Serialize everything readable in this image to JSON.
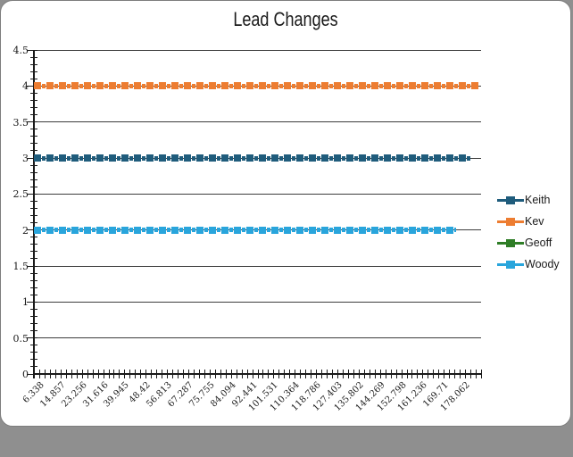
{
  "window": {
    "background_color": "#8f8f8f",
    "card_background_color": "#ffffff",
    "card_border_color": "#7d7d7d"
  },
  "chart_data": {
    "type": "line",
    "title": "Lead Changes",
    "x": {
      "tick_labels": [
        "6.338",
        "14.857",
        "23.256",
        "31.616",
        "39.945",
        "48.42",
        "56.813",
        "67.287",
        "75.755",
        "84.094",
        "92.441",
        "101.531",
        "110.364",
        "118.786",
        "127.403",
        "135.802",
        "144.269",
        "152.798",
        "161.236",
        "169.71",
        "178.062"
      ],
      "total_minor_ticks": 85,
      "label_every_n_minor_ticks": 4,
      "first_label_minor_tick_index": 1,
      "labels_rotation_deg": 45
    },
    "y": {
      "min": 0,
      "max": 4.5,
      "major_step": 0.5,
      "minor_step": 0.1,
      "tick_labels": [
        "0",
        "0.5",
        "1",
        "1.5",
        "2",
        "2.5",
        "3",
        "3.5",
        "4",
        "4.5"
      ]
    },
    "grid": {
      "horizontal_major": true,
      "color": "#3d3d3d"
    },
    "axis_color": "#1a1a1a",
    "legend": {
      "position": "right",
      "entries": [
        "Keith",
        "Kev",
        "Geoff",
        "Woody"
      ]
    },
    "series": [
      {
        "name": "Keith",
        "color": "#1F5C7C",
        "values_constant": 3,
        "end_fraction": 0.976,
        "visible_in_plot": true,
        "line_style": "thick-dashed-with-square-markers"
      },
      {
        "name": "Kev",
        "color": "#ED7D31",
        "values_constant": 4,
        "end_fraction": 0.996,
        "visible_in_plot": true,
        "line_style": "thick-dashed-with-square-markers"
      },
      {
        "name": "Geoff",
        "color": "#2E7D26",
        "values_constant": null,
        "end_fraction": null,
        "visible_in_plot": false,
        "line_style": "thick-dashed-with-square-markers"
      },
      {
        "name": "Woody",
        "color": "#29A5DC",
        "values_constant": 2,
        "end_fraction": 0.944,
        "visible_in_plot": true,
        "line_style": "thick-dashed-with-square-markers"
      }
    ]
  }
}
